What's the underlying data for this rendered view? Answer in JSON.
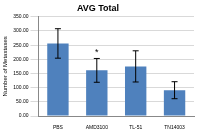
{
  "chart_data": {
    "type": "bar",
    "title": "AVG Total",
    "y_label": "Number of Metastases",
    "categories": [
      "PBS",
      "AMD3100",
      "TL-51",
      "TN14003"
    ],
    "values": [
      256,
      161,
      175,
      91
    ],
    "errors": [
      52,
      42,
      55,
      30
    ],
    "color": "#4f81bd",
    "ylim": [
      0,
      350
    ],
    "yticks": [
      {
        "value": 0,
        "label": "0.00"
      },
      {
        "value": 50,
        "label": "50.00"
      },
      {
        "value": 100,
        "label": "100.00"
      },
      {
        "value": 150,
        "label": "150.00"
      },
      {
        "value": 200,
        "label": "200.00"
      },
      {
        "value": 250,
        "label": "250.00"
      },
      {
        "value": 300,
        "label": "300.00"
      },
      {
        "value": 350,
        "label": "350.00"
      }
    ],
    "annotations": [
      {
        "text": "*",
        "category": "AMD3100"
      }
    ],
    "grid": true
  }
}
